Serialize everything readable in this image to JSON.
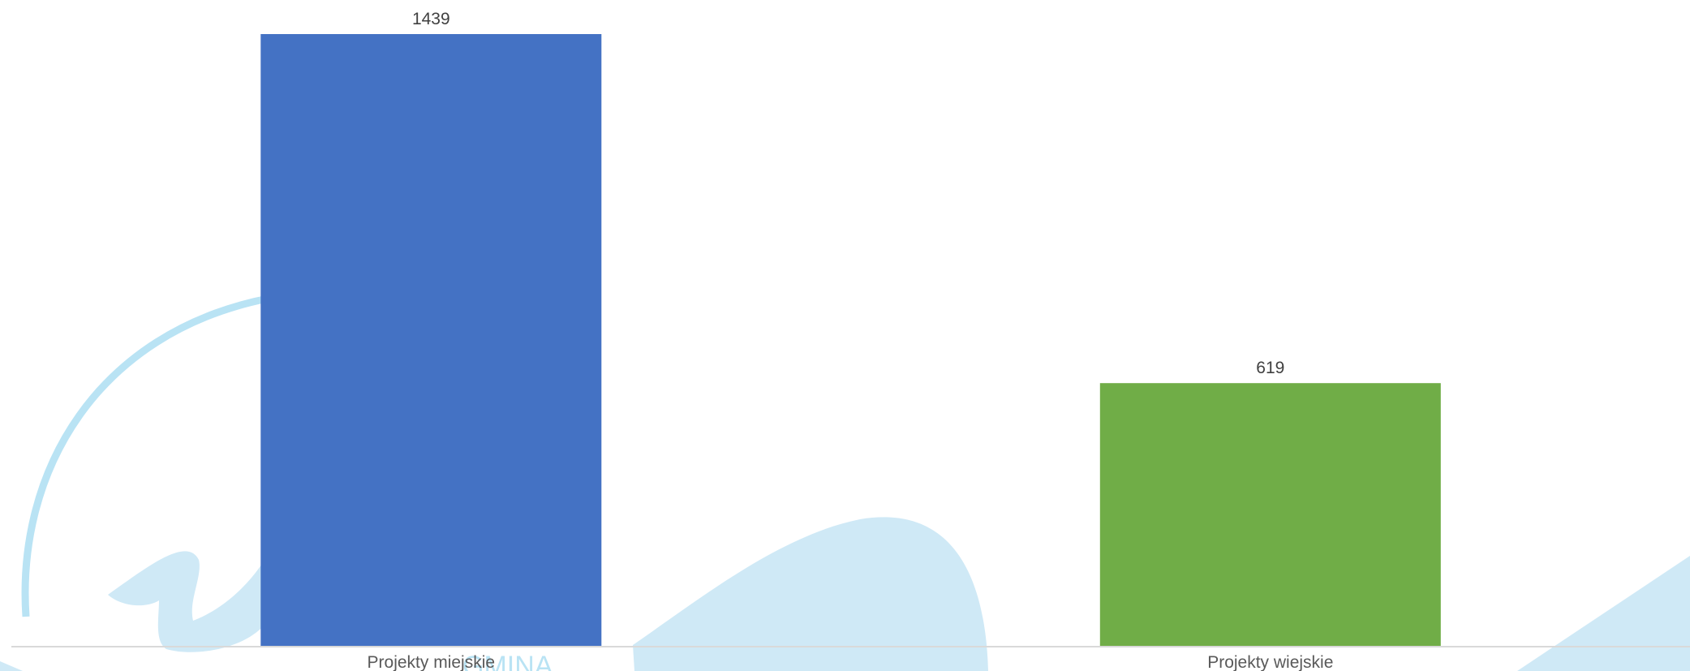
{
  "chart_data": {
    "type": "bar",
    "categories": [
      "Projekty miejskie",
      "Projekty wiejskie"
    ],
    "values": [
      1439,
      619
    ],
    "colors": [
      "#4472c4",
      "#70ad47"
    ],
    "ylim": [
      0,
      1439
    ],
    "grid": false,
    "legend": "none",
    "data_labels": true
  },
  "watermark": {
    "text": "GMINA"
  }
}
